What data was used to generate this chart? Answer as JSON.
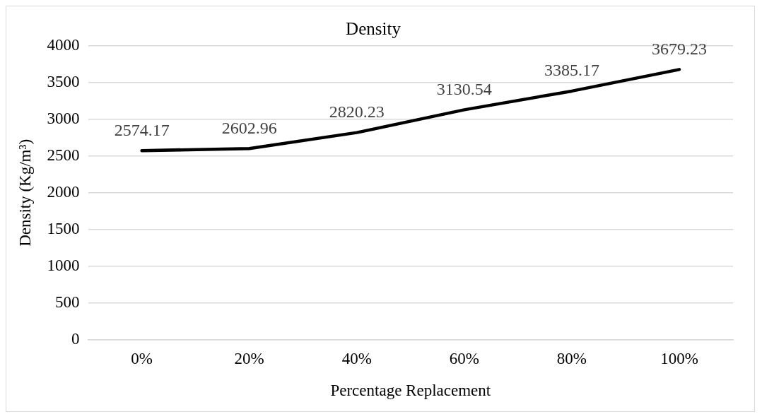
{
  "chart_data": {
    "type": "line",
    "title": "Density",
    "xlabel": "Percentage Replacement",
    "ylabel": "Density (Kg/m³)",
    "categories": [
      "0%",
      "20%",
      "40%",
      "60%",
      "80%",
      "100%"
    ],
    "series": [
      {
        "color": "#000000",
        "values": [
          2574.17,
          2602.96,
          2820.23,
          3130.54,
          3385.17,
          3679.23
        ]
      }
    ],
    "ylim": [
      0,
      4000
    ],
    "yticks": [
      0,
      500,
      1000,
      1500,
      2000,
      2500,
      3000,
      3500,
      4000
    ],
    "grid": "y",
    "legend": false,
    "marker": "none",
    "line_style": "solid",
    "data_labels": true
  }
}
